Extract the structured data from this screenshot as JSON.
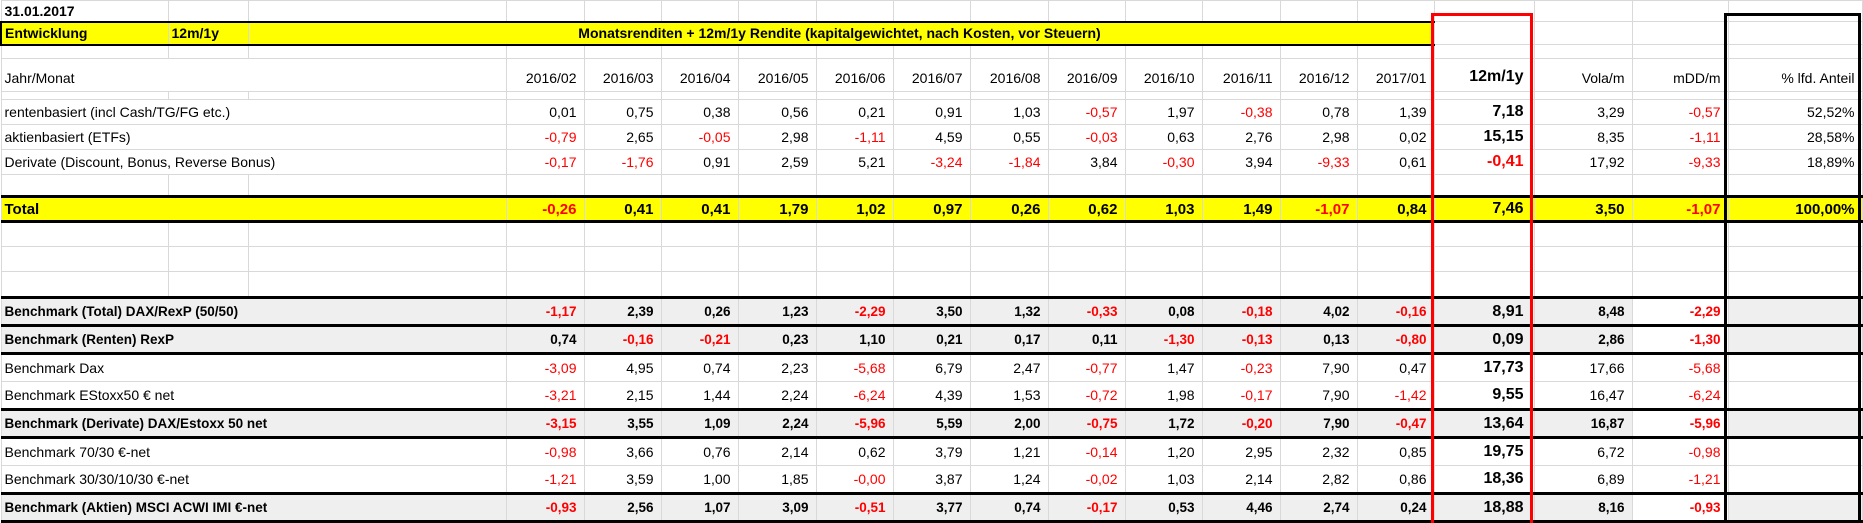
{
  "meta": {
    "date": "31.01.2017"
  },
  "banner": {
    "left": "Entwicklung",
    "range": "12m/1y",
    "title": "Monatsrenditen + 12m/1y  Rendite (kapitalgewichtet, nach Kosten, vor Steuern)"
  },
  "columns": {
    "axis": "Jahr/Monat",
    "months": [
      "2016/02",
      "2016/03",
      "2016/04",
      "2016/05",
      "2016/06",
      "2016/07",
      "2016/08",
      "2016/09",
      "2016/10",
      "2016/11",
      "2016/12",
      "2017/01"
    ],
    "period": "12m/1y",
    "vola": "Vola/m",
    "mdd": "mDD/m",
    "share": "% lfd. Anteil"
  },
  "table": {
    "portfolio_rows": [
      {
        "label": "rentenbasiert (incl Cash/TG/FG etc.)",
        "values": [
          "0,01",
          "0,75",
          "0,38",
          "0,56",
          "0,21",
          "0,91",
          "1,03",
          "-0,57",
          "1,97",
          "-0,38",
          "0,78",
          "1,39"
        ],
        "period": "7,18",
        "vola": "3,29",
        "mdd": "-0,57",
        "share": "52,52%"
      },
      {
        "label": "aktienbasiert (ETFs)",
        "values": [
          "-0,79",
          "2,65",
          "-0,05",
          "2,98",
          "-1,11",
          "4,59",
          "0,55",
          "-0,03",
          "0,63",
          "2,76",
          "2,98",
          "0,02"
        ],
        "period": "15,15",
        "vola": "8,35",
        "mdd": "-1,11",
        "share": "28,58%"
      },
      {
        "label": "Derivate (Discount, Bonus, Reverse Bonus)",
        "values": [
          "-0,17",
          "-1,76",
          "0,91",
          "2,59",
          "5,21",
          "-3,24",
          "-1,84",
          "3,84",
          "-0,30",
          "3,94",
          "-9,33",
          "0,61"
        ],
        "period": "-0,41",
        "vola": "17,92",
        "mdd": "-9,33",
        "share": "18,89%"
      }
    ],
    "total_row": {
      "label": "Total",
      "values": [
        "-0,26",
        "0,41",
        "0,41",
        "1,79",
        "1,02",
        "0,97",
        "0,26",
        "0,62",
        "1,03",
        "1,49",
        "-1,07",
        "0,84"
      ],
      "period": "7,46",
      "vola": "3,50",
      "mdd": "-1,07",
      "share": "100,00%"
    },
    "benchmark_rows": [
      {
        "label": "Benchmark (Total) DAX/RexP (50/50)",
        "highlight": true,
        "values": [
          "-1,17",
          "2,39",
          "0,26",
          "1,23",
          "-2,29",
          "3,50",
          "1,32",
          "-0,33",
          "0,08",
          "-0,18",
          "4,02",
          "-0,16"
        ],
        "period": "8,91",
        "vola": "8,48",
        "mdd": "-2,29"
      },
      {
        "label": "Benchmark (Renten) RexP",
        "highlight": true,
        "values": [
          "0,74",
          "-0,16",
          "-0,21",
          "0,23",
          "1,10",
          "0,21",
          "0,17",
          "0,11",
          "-1,30",
          "-0,13",
          "0,13",
          "-0,80"
        ],
        "period": "0,09",
        "vola": "2,86",
        "mdd": "-1,30"
      },
      {
        "label": "Benchmark Dax",
        "highlight": false,
        "values": [
          "-3,09",
          "4,95",
          "0,74",
          "2,23",
          "-5,68",
          "6,79",
          "2,47",
          "-0,77",
          "1,47",
          "-0,23",
          "7,90",
          "0,47"
        ],
        "period": "17,73",
        "vola": "17,66",
        "mdd": "-5,68"
      },
      {
        "label": "Benchmark EStoxx50 € net",
        "highlight": false,
        "values": [
          "-3,21",
          "2,15",
          "1,44",
          "2,24",
          "-6,24",
          "4,39",
          "1,53",
          "-0,72",
          "1,98",
          "-0,17",
          "7,90",
          "-1,42"
        ],
        "period": "9,55",
        "vola": "16,47",
        "mdd": "-6,24"
      },
      {
        "label": "Benchmark (Derivate)  DAX/Estoxx 50 net",
        "highlight": true,
        "values": [
          "-3,15",
          "3,55",
          "1,09",
          "2,24",
          "-5,96",
          "5,59",
          "2,00",
          "-0,75",
          "1,72",
          "-0,20",
          "7,90",
          "-0,47"
        ],
        "period": "13,64",
        "vola": "16,87",
        "mdd": "-5,96"
      },
      {
        "label": "Benchmark 70/30 €-net",
        "highlight": false,
        "values": [
          "-0,98",
          "3,66",
          "0,76",
          "2,14",
          "0,62",
          "3,79",
          "1,21",
          "-0,14",
          "1,20",
          "2,95",
          "2,32",
          "0,85"
        ],
        "period": "19,75",
        "vola": "6,72",
        "mdd": "-0,98"
      },
      {
        "label": "Benchmark 30/30/10/30 €-net",
        "highlight": false,
        "values": [
          "-1,21",
          "3,59",
          "1,00",
          "1,85",
          "-0,00",
          "3,87",
          "1,24",
          "-0,02",
          "1,03",
          "2,14",
          "2,82",
          "0,86"
        ],
        "period": "18,36",
        "vola": "6,89",
        "mdd": "-1,21"
      },
      {
        "label": "Benchmark (Aktien) MSCI ACWI IMI €-net",
        "highlight": true,
        "values": [
          "-0,93",
          "2,56",
          "1,07",
          "3,09",
          "-0,51",
          "3,77",
          "0,74",
          "-0,17",
          "0,53",
          "4,46",
          "2,74",
          "0,24"
        ],
        "period": "18,88",
        "vola": "8,16",
        "mdd": "-0,93"
      }
    ]
  },
  "colors": {
    "accent_yellow": "#ffff00",
    "negative": "#ff0000",
    "highlight_row_bg": "#efefef",
    "gridline": "#d9d9d9",
    "frame_red": "#ff0000",
    "frame_black": "#000000"
  }
}
